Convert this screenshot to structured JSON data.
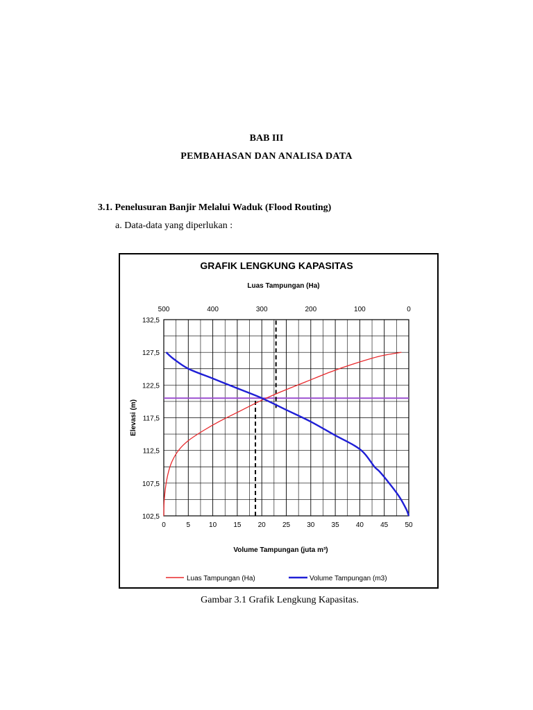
{
  "document": {
    "chapter": "BAB III",
    "chapter_title": "PEMBAHASAN DAN ANALISA DATA",
    "section": "3.1. Penelusuran Banjir Melalui Waduk (Flood Routing)",
    "item": "a.  Data-data yang diperlukan :",
    "caption": "Gambar 3.1 Grafik Lengkung Kapasitas."
  },
  "chart_data": {
    "type": "line",
    "title": "GRAFIK LENGKUNG KAPASITAS",
    "top_axis_label": "Luas Tampungan (Ha)",
    "xlabel": "Volume Tampungan (juta m³)",
    "ylabel": "Elevasi (m)",
    "xlim": [
      0,
      50
    ],
    "top_xlim": [
      500,
      0
    ],
    "ylim": [
      102.5,
      132.5
    ],
    "x_ticks": [
      "0",
      "5",
      "10",
      "15",
      "20",
      "25",
      "30",
      "35",
      "40",
      "45",
      "50"
    ],
    "top_ticks": [
      "500",
      "400",
      "300",
      "200",
      "100",
      "0"
    ],
    "y_ticks": [
      "102,5",
      "107,5",
      "112,5",
      "117,5",
      "122,5",
      "127,5",
      "132,5"
    ],
    "grid": true,
    "colors": {
      "luas": "#e8282b",
      "volume": "#1f1fd6",
      "reference": "#9b4fd0",
      "guide": "#000000"
    },
    "series": [
      {
        "name": "Luas Tampungan (Ha)",
        "axis": "top",
        "x": [
          500,
          499,
          494,
          485,
          470,
          450,
          420,
          385,
          345,
          305,
          260,
          210,
          160,
          110,
          60,
          15
        ],
        "y": [
          102.5,
          105,
          108,
          110.5,
          112.5,
          114,
          115.5,
          117,
          118.5,
          120,
          121.5,
          123,
          124.5,
          125.8,
          126.9,
          127.5
        ]
      },
      {
        "name": "Volume Tampungan (m3)",
        "axis": "bottom",
        "x": [
          0.5,
          2,
          5,
          10,
          15,
          20,
          25,
          30,
          35,
          39,
          41,
          43,
          44,
          46,
          48,
          49.5,
          50
        ],
        "y": [
          127.5,
          126.5,
          125,
          123.5,
          122,
          120.5,
          118.7,
          116.9,
          114.8,
          113.2,
          112,
          110,
          109.3,
          107.5,
          105.5,
          103.5,
          102.5
        ]
      }
    ],
    "reference_line": {
      "y": 120.5
    },
    "guide_lines": [
      {
        "axis": "bottom",
        "x": 18.7,
        "from_y": 102.5,
        "to_y": 120.5
      },
      {
        "axis": "top",
        "x": 271,
        "from_y": 119,
        "to_y": 132.5
      }
    ],
    "legend": [
      "Luas Tampungan (Ha)",
      "Volume Tampungan (m3)"
    ]
  }
}
